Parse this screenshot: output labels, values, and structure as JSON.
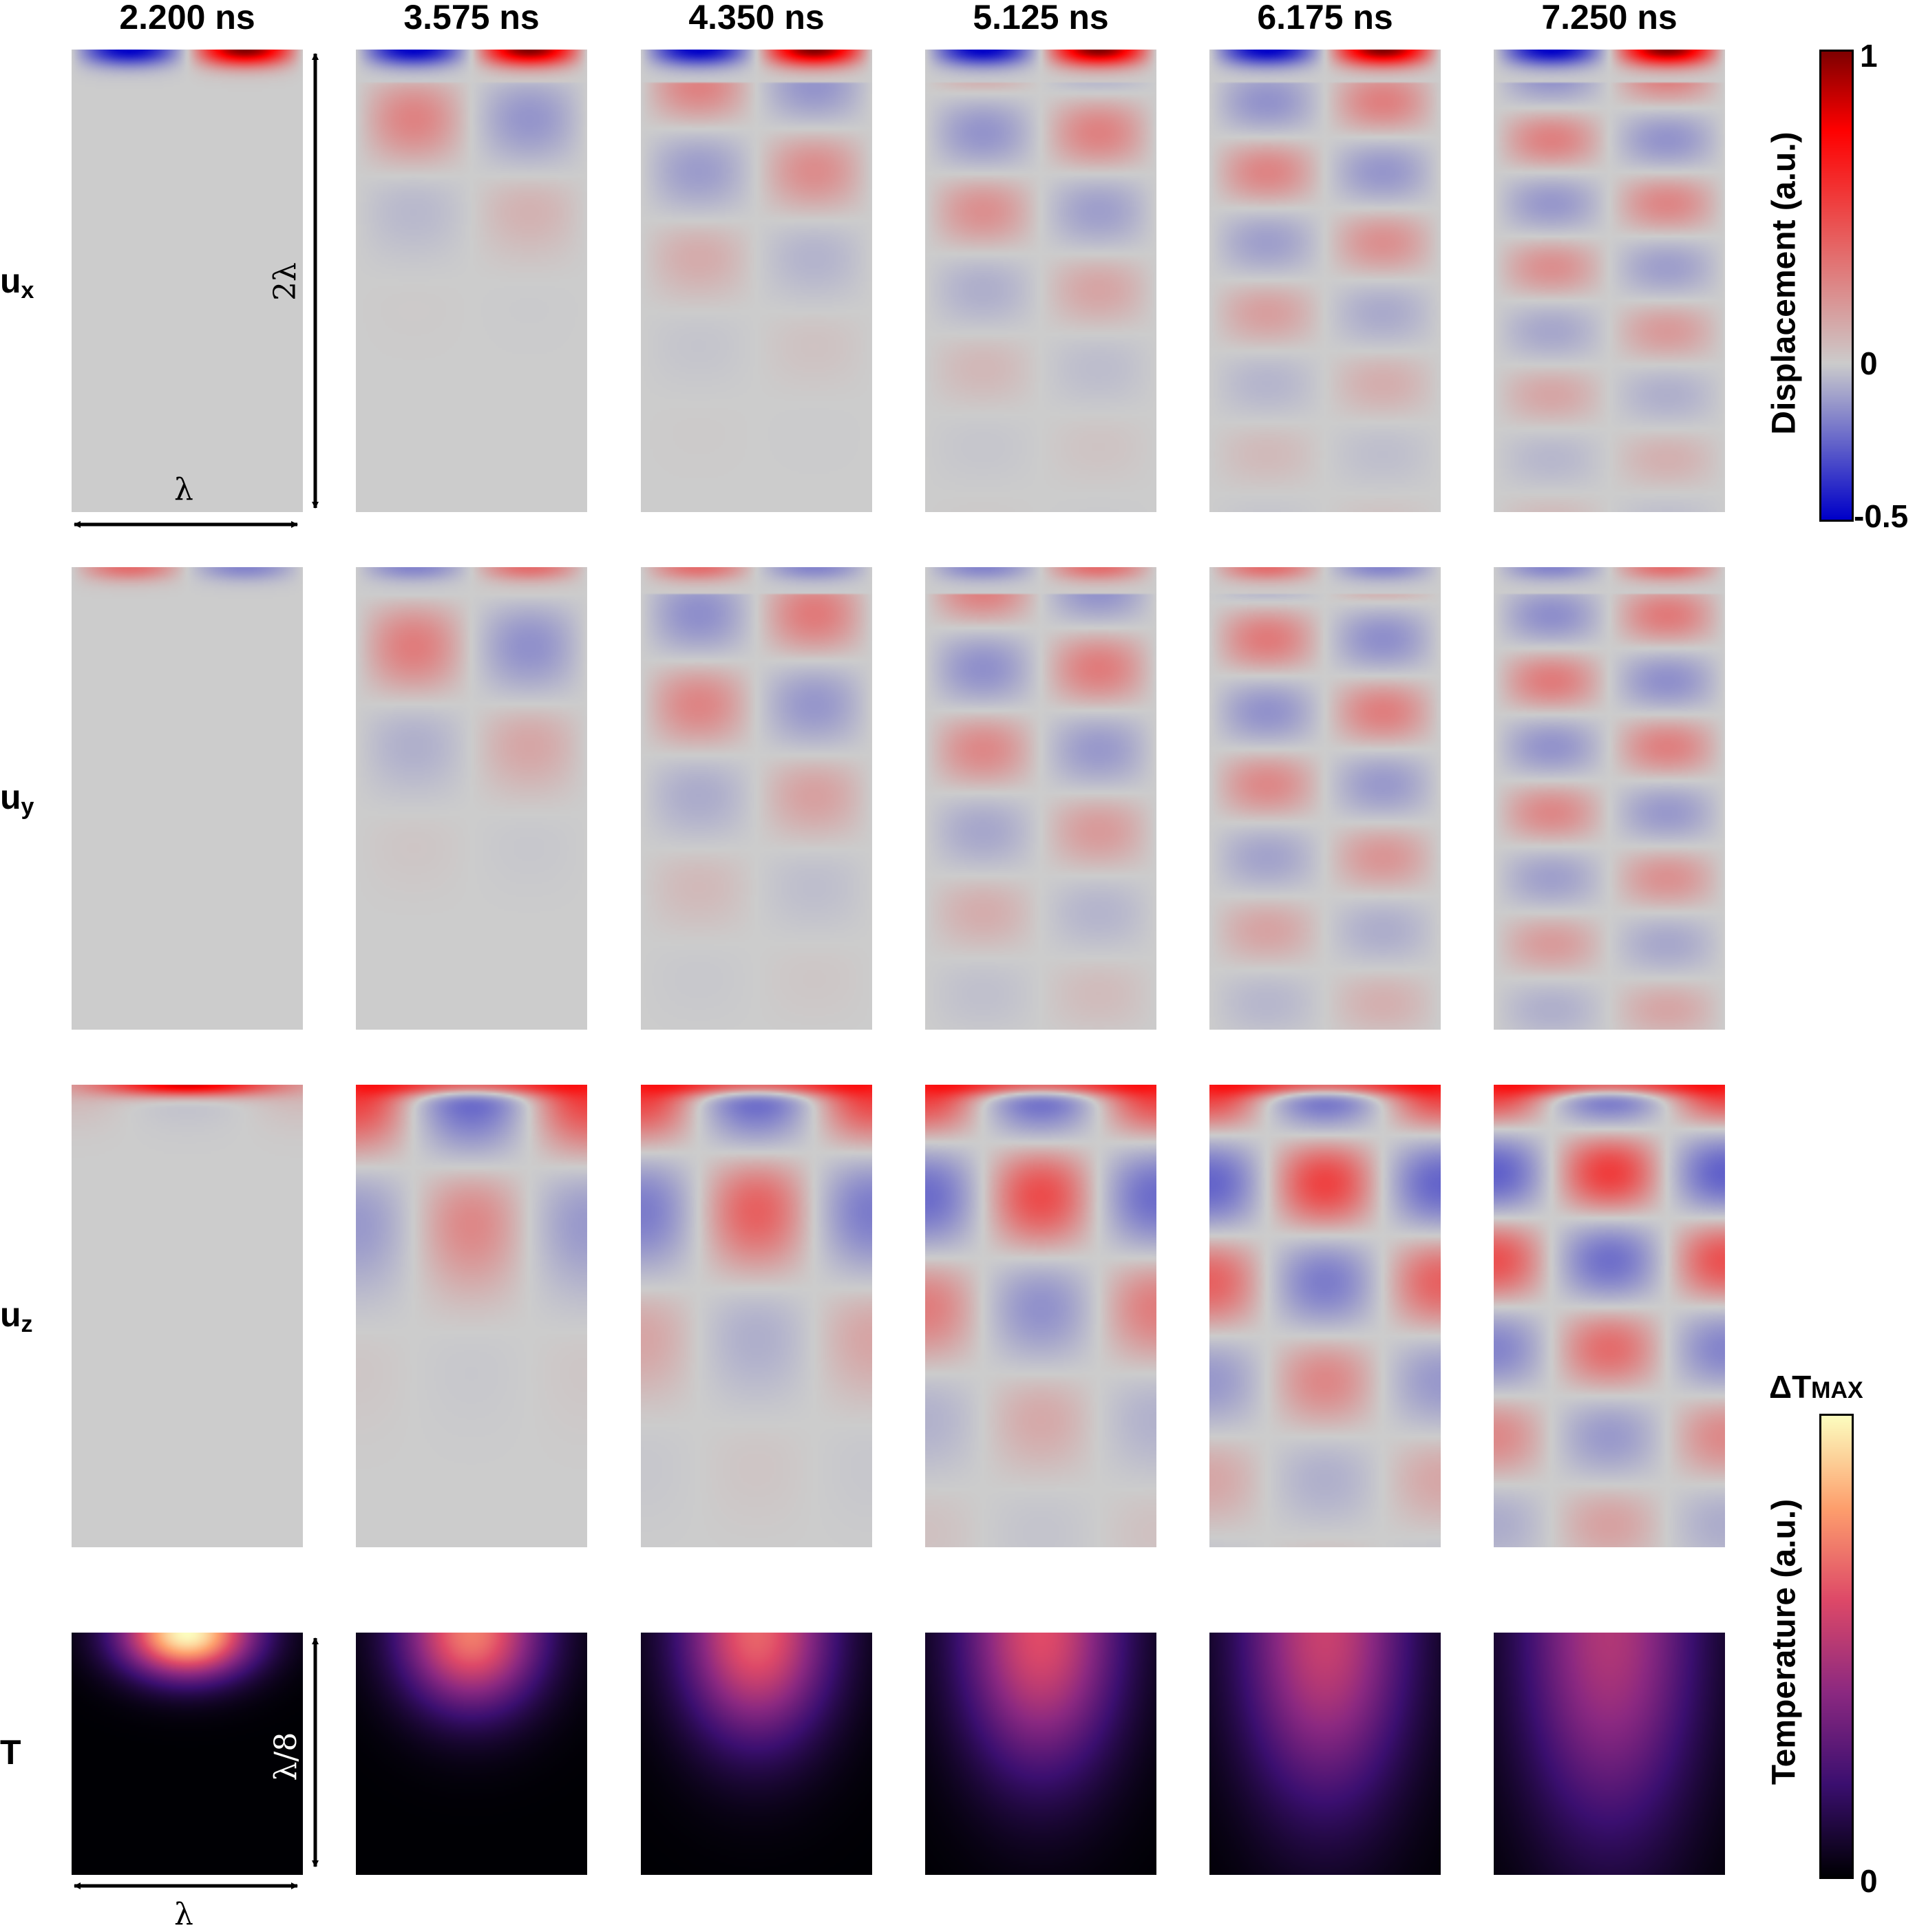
{
  "time_labels": [
    "2.200 ns",
    "3.575 ns",
    "4.350 ns",
    "5.125 ns",
    "6.175 ns",
    "7.250 ns"
  ],
  "rows": [
    {
      "key": "ux",
      "base": "u",
      "sub": "x"
    },
    {
      "key": "uy",
      "base": "u",
      "sub": "y"
    },
    {
      "key": "uz",
      "base": "u",
      "sub": "z"
    },
    {
      "key": "T",
      "base": "T",
      "sub": ""
    }
  ],
  "dimensions": {
    "width_label": "λ",
    "height_label": "2λ",
    "temp_width_label": "λ",
    "temp_height_label": "λ/8"
  },
  "displacement_colorbar": {
    "title": "Displacement (a.u.)",
    "max_label": "1",
    "mid_label": "0",
    "min_label": "-0.5",
    "max": 1,
    "min": -0.5,
    "colormap": [
      "#0000c8",
      "#c8c8d2",
      "#cccccc",
      "#d2c8c8",
      "#ff0000",
      "#800000"
    ]
  },
  "temperature_colorbar": {
    "title": "Temperature (a.u.)",
    "max_label": "ΔT",
    "max_label_sub": "MAX",
    "min_label": "0",
    "colormap": [
      "#000004",
      "#3b0f70",
      "#8c2981",
      "#de4968",
      "#fe9f6d",
      "#fcfdbf"
    ]
  }
}
